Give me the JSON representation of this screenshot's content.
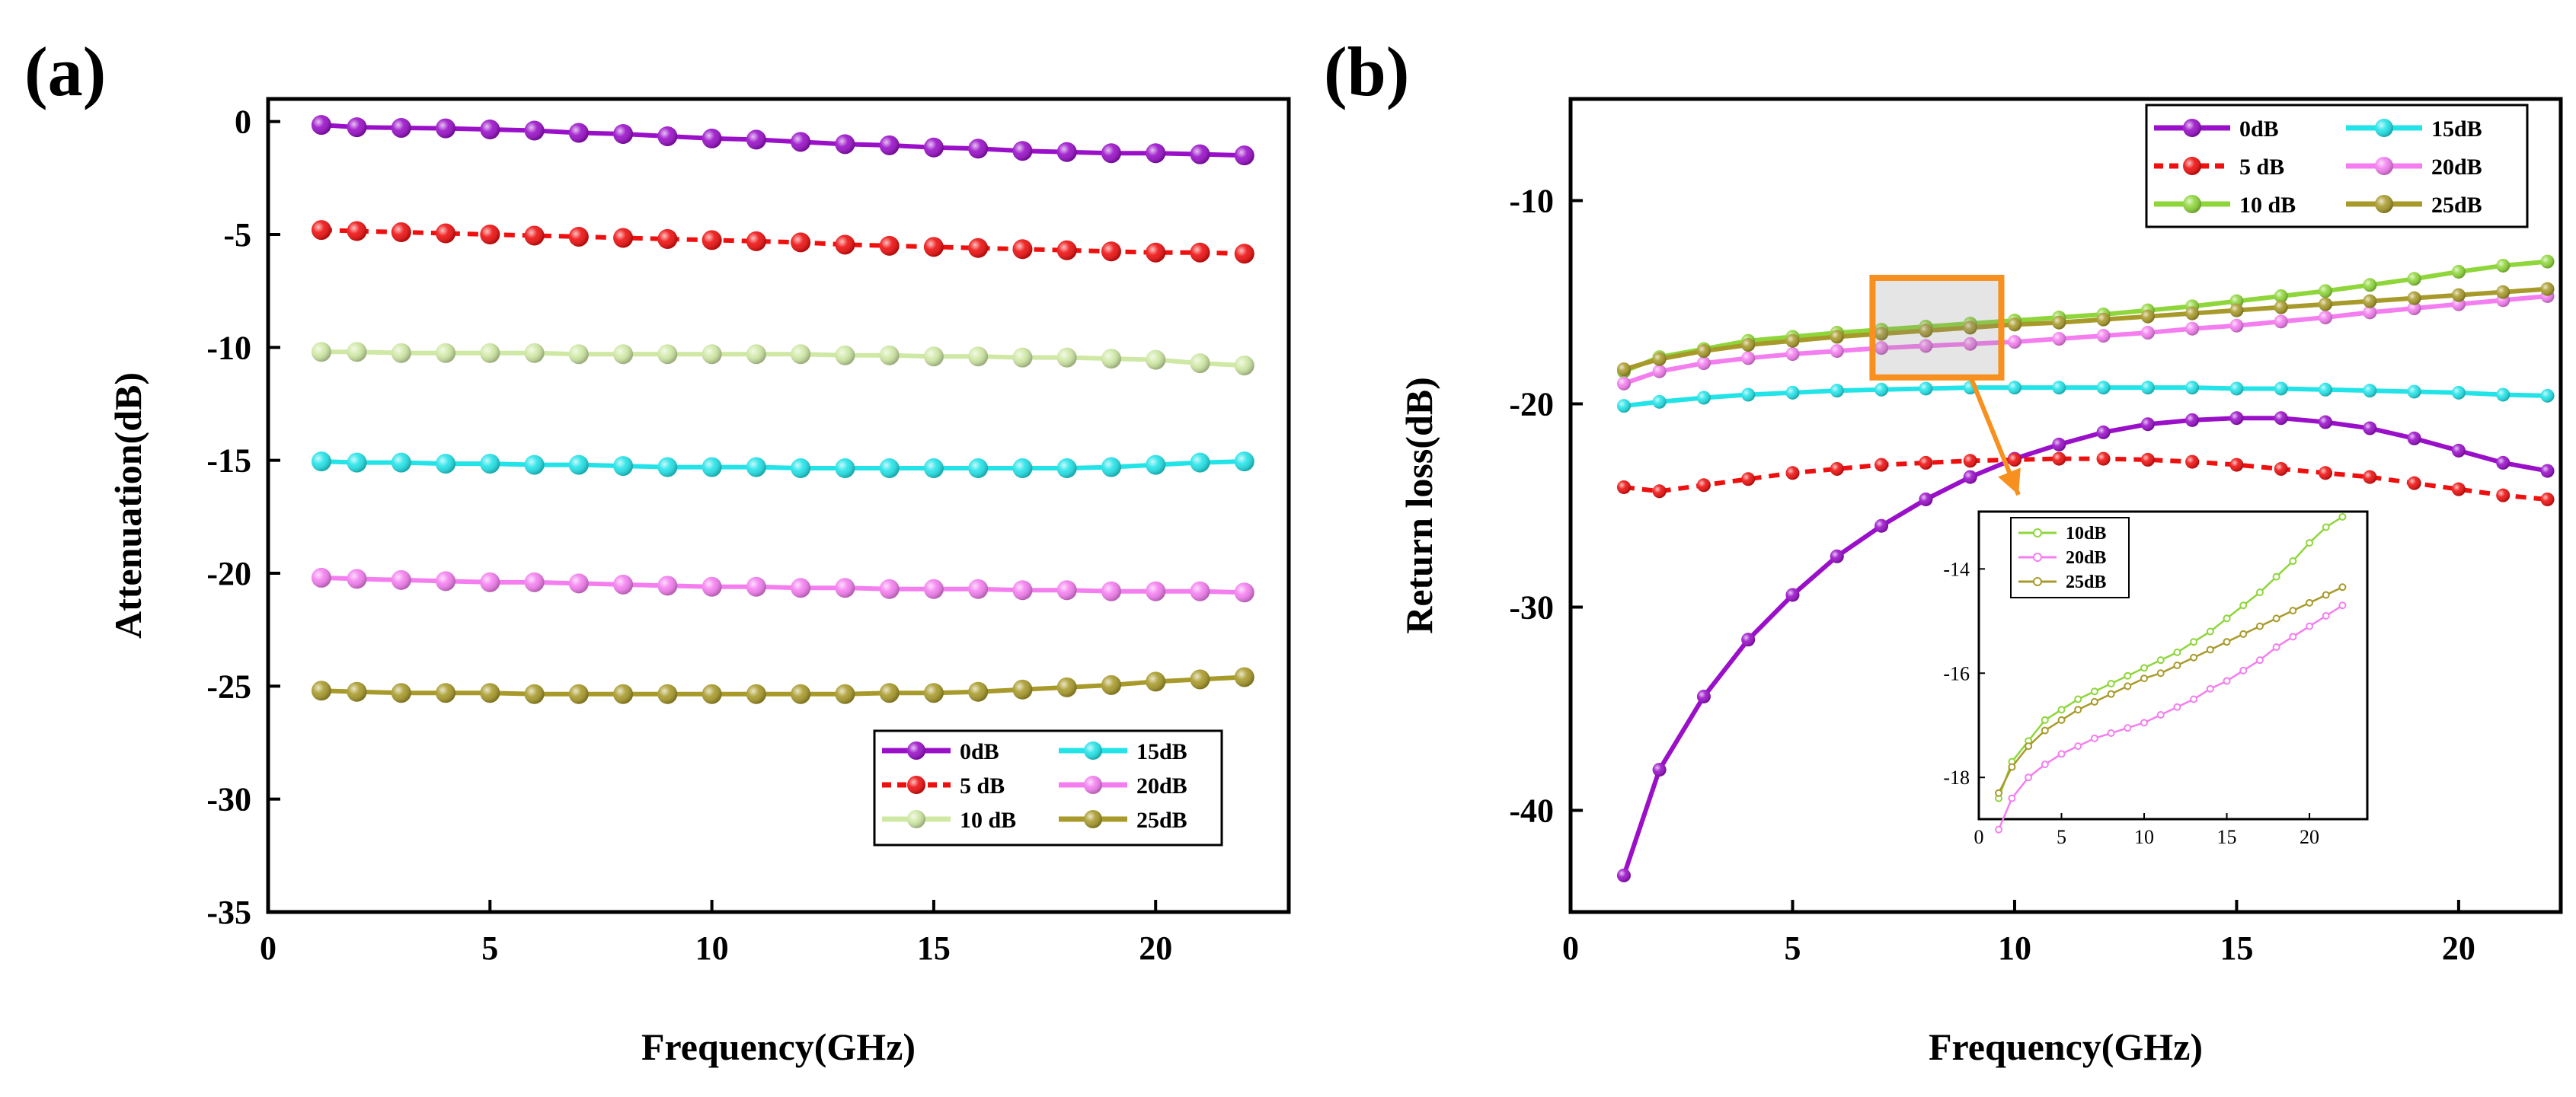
{
  "colors": {
    "0dB": "#9a10c9",
    "5dB": "#ee0f0f",
    "10dB_a": "#cfe8a4",
    "10dB_b": "#8ed63a",
    "15dB": "#22e3e8",
    "20dB": "#f47ef0",
    "25dB": "#a89a2a",
    "zoom": "#f7901e"
  },
  "chart_data": [
    {
      "id": "a",
      "panel_label": "(a)",
      "type": "line",
      "xlabel": "Frequency(GHz)",
      "ylabel": "Attenuation(dB)",
      "xlim": [
        0,
        23
      ],
      "ylim": [
        -35,
        1
      ],
      "x_ticks": [
        "0",
        "5",
        "10",
        "15",
        "20"
      ],
      "y_ticks": [
        "0",
        "-5",
        "-10",
        "-15",
        "-20",
        "-25",
        "-30",
        "-35"
      ],
      "x": [
        1.2,
        2,
        3,
        4,
        5,
        6,
        7,
        8,
        9,
        10,
        11,
        12,
        13,
        14,
        15,
        16,
        17,
        18,
        19,
        20,
        21,
        22
      ],
      "series": [
        {
          "name": "0dB",
          "color_key": "0dB",
          "dashed": false,
          "values": [
            -0.15,
            -0.25,
            -0.28,
            -0.3,
            -0.35,
            -0.4,
            -0.5,
            -0.55,
            -0.65,
            -0.75,
            -0.8,
            -0.9,
            -1.0,
            -1.05,
            -1.15,
            -1.2,
            -1.3,
            -1.35,
            -1.4,
            -1.4,
            -1.45,
            -1.5
          ]
        },
        {
          "name": "5 dB",
          "color_key": "5dB",
          "dashed": true,
          "values": [
            -4.8,
            -4.85,
            -4.9,
            -4.95,
            -5.0,
            -5.05,
            -5.1,
            -5.15,
            -5.2,
            -5.25,
            -5.3,
            -5.35,
            -5.45,
            -5.5,
            -5.55,
            -5.6,
            -5.65,
            -5.7,
            -5.75,
            -5.8,
            -5.8,
            -5.85
          ]
        },
        {
          "name": "10 dB",
          "color_key": "10dB_a",
          "dashed": false,
          "values": [
            -10.2,
            -10.2,
            -10.25,
            -10.25,
            -10.25,
            -10.25,
            -10.3,
            -10.3,
            -10.3,
            -10.3,
            -10.3,
            -10.3,
            -10.35,
            -10.35,
            -10.4,
            -10.4,
            -10.45,
            -10.45,
            -10.5,
            -10.55,
            -10.7,
            -10.8
          ]
        },
        {
          "name": "15dB",
          "color_key": "15dB",
          "dashed": false,
          "values": [
            -15.05,
            -15.1,
            -15.1,
            -15.15,
            -15.15,
            -15.2,
            -15.2,
            -15.25,
            -15.3,
            -15.3,
            -15.3,
            -15.35,
            -15.35,
            -15.35,
            -15.35,
            -15.35,
            -15.35,
            -15.35,
            -15.3,
            -15.2,
            -15.1,
            -15.05
          ]
        },
        {
          "name": "20dB",
          "color_key": "20dB",
          "dashed": false,
          "values": [
            -20.2,
            -20.25,
            -20.3,
            -20.35,
            -20.4,
            -20.4,
            -20.45,
            -20.5,
            -20.55,
            -20.6,
            -20.6,
            -20.65,
            -20.65,
            -20.7,
            -20.7,
            -20.7,
            -20.75,
            -20.75,
            -20.8,
            -20.8,
            -20.8,
            -20.85
          ]
        },
        {
          "name": "25dB",
          "color_key": "25dB",
          "dashed": false,
          "values": [
            -25.2,
            -25.25,
            -25.3,
            -25.3,
            -25.3,
            -25.35,
            -25.35,
            -25.35,
            -25.35,
            -25.35,
            -25.35,
            -25.35,
            -25.35,
            -25.3,
            -25.3,
            -25.25,
            -25.15,
            -25.05,
            -24.95,
            -24.8,
            -24.7,
            -24.6
          ]
        }
      ],
      "legend": {
        "position": "bottom-right",
        "columns": [
          [
            "0dB",
            "5 dB",
            "10 dB"
          ],
          [
            "15dB",
            "20dB",
            "25dB"
          ]
        ]
      }
    },
    {
      "id": "b",
      "panel_label": "(b)",
      "type": "line",
      "xlabel": "Frequency(GHz)",
      "ylabel": "Return loss(dB)",
      "xlim": [
        0,
        22.3
      ],
      "ylim": [
        -45,
        -5
      ],
      "x_ticks": [
        "0",
        "5",
        "10",
        "15",
        "20"
      ],
      "y_ticks": [
        "-10",
        "-20",
        "-30",
        "-40"
      ],
      "x": [
        1.2,
        2,
        3,
        4,
        5,
        6,
        7,
        8,
        9,
        10,
        11,
        12,
        13,
        14,
        15,
        16,
        17,
        18,
        19,
        20,
        21,
        22
      ],
      "series": [
        {
          "name": "0dB",
          "color_key": "0dB",
          "dashed": false,
          "values": [
            -43.2,
            -38.0,
            -34.4,
            -31.6,
            -29.4,
            -27.5,
            -26.0,
            -24.7,
            -23.6,
            -22.7,
            -22.0,
            -21.4,
            -21.0,
            -20.8,
            -20.7,
            -20.7,
            -20.9,
            -21.2,
            -21.7,
            -22.3,
            -22.9,
            -23.3
          ]
        },
        {
          "name": "5 dB",
          "color_key": "5dB",
          "dashed": true,
          "values": [
            -24.1,
            -24.3,
            -24.0,
            -23.7,
            -23.4,
            -23.2,
            -23.0,
            -22.9,
            -22.8,
            -22.75,
            -22.7,
            -22.7,
            -22.75,
            -22.85,
            -23.0,
            -23.2,
            -23.4,
            -23.6,
            -23.9,
            -24.2,
            -24.5,
            -24.7
          ]
        },
        {
          "name": "10 dB",
          "color_key": "10dB_b",
          "dashed": false,
          "values": [
            -18.4,
            -17.7,
            -17.3,
            -16.9,
            -16.7,
            -16.5,
            -16.35,
            -16.2,
            -16.05,
            -15.9,
            -15.75,
            -15.6,
            -15.4,
            -15.2,
            -14.95,
            -14.7,
            -14.45,
            -14.15,
            -13.85,
            -13.5,
            -13.2,
            -13.0
          ]
        },
        {
          "name": "15dB",
          "color_key": "15dB",
          "dashed": false,
          "values": [
            -20.1,
            -19.9,
            -19.7,
            -19.55,
            -19.45,
            -19.35,
            -19.3,
            -19.25,
            -19.2,
            -19.2,
            -19.2,
            -19.2,
            -19.2,
            -19.2,
            -19.25,
            -19.25,
            -19.3,
            -19.35,
            -19.4,
            -19.45,
            -19.55,
            -19.6
          ]
        },
        {
          "name": "20dB",
          "color_key": "20dB",
          "dashed": false,
          "values": [
            -19.0,
            -18.4,
            -18.0,
            -17.75,
            -17.55,
            -17.4,
            -17.25,
            -17.15,
            -17.05,
            -16.95,
            -16.8,
            -16.65,
            -16.5,
            -16.3,
            -16.15,
            -15.95,
            -15.75,
            -15.5,
            -15.3,
            -15.1,
            -14.9,
            -14.7
          ]
        },
        {
          "name": "25dB",
          "color_key": "25dB",
          "dashed": false,
          "values": [
            -18.3,
            -17.8,
            -17.4,
            -17.1,
            -16.9,
            -16.7,
            -16.55,
            -16.4,
            -16.25,
            -16.1,
            -16.0,
            -15.85,
            -15.7,
            -15.55,
            -15.4,
            -15.25,
            -15.1,
            -14.95,
            -14.8,
            -14.65,
            -14.5,
            -14.35
          ]
        }
      ],
      "zoom_region": {
        "x": [
          6.8,
          9.7
        ],
        "y": [
          -18.7,
          -13.8
        ]
      },
      "legend": {
        "position": "top-right",
        "columns": [
          [
            "0dB",
            "5 dB",
            "10 dB"
          ],
          [
            "15dB",
            "20dB",
            "25dB"
          ]
        ]
      },
      "inset": {
        "type": "line",
        "xlim": [
          0,
          23.5
        ],
        "ylim": [
          -18.8,
          -12.9
        ],
        "x_ticks": [
          "0",
          "5",
          "10",
          "15",
          "20"
        ],
        "y_ticks": [
          "-14",
          "-16",
          "-18"
        ],
        "series_names": [
          "10dB",
          "20dB",
          "25dB"
        ],
        "legend_labels": [
          "10dB",
          "20dB",
          "25dB"
        ]
      }
    }
  ]
}
